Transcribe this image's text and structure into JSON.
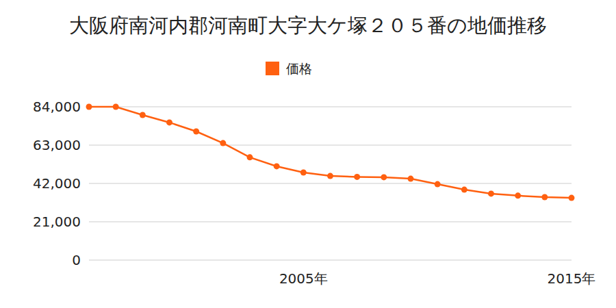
{
  "chart_data": {
    "type": "line",
    "title": "大阪府南河内郡河南町大字大ケ塚２０５番の地価推移",
    "categories": [
      null,
      null,
      null,
      null,
      null,
      null,
      null,
      null,
      "2005年",
      null,
      null,
      null,
      null,
      null,
      null,
      null,
      null,
      null,
      "2015年"
    ],
    "series": [
      {
        "name": "価格",
        "color": "#ff6010",
        "marker": "circle",
        "values": [
          84000,
          84000,
          79500,
          75400,
          70500,
          64100,
          56300,
          51400,
          48000,
          46100,
          45600,
          45400,
          44600,
          41600,
          38600,
          36400,
          35300,
          34500,
          34100
        ]
      }
    ],
    "ylim": [
      0,
      84000
    ],
    "yticks": [
      0,
      {
        "value": 21000,
        "label": "21,000"
      },
      {
        "value": 42000,
        "label": "42,000"
      },
      {
        "value": 63000,
        "label": "63,000"
      },
      {
        "value": 84000,
        "label": "84,000"
      }
    ],
    "grid": true,
    "legend": "top"
  }
}
